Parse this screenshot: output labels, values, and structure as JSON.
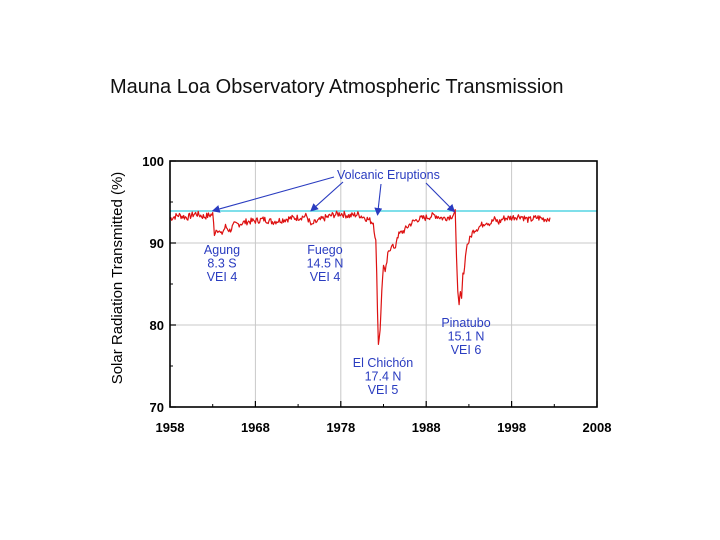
{
  "chart_data": {
    "type": "line",
    "title": "Mauna Loa Observatory Atmospheric Transmission",
    "xlabel": "",
    "ylabel": "Solar Radiation Transmitted (%)",
    "xlim": [
      1958,
      2008
    ],
    "ylim": [
      70,
      100
    ],
    "xticks": [
      1958,
      1968,
      1978,
      1988,
      1998,
      2008
    ],
    "yticks": [
      70,
      80,
      90,
      100
    ],
    "grid": true,
    "reference_line": {
      "y": 93.9,
      "color": "#33ccdd"
    },
    "series": [
      {
        "name": "Atmospheric transmission",
        "color": "#dd1111",
        "x": [
          1958.0,
          1959.0,
          1960.0,
          1961.0,
          1962.0,
          1963.0,
          1963.2,
          1963.5,
          1964.0,
          1964.5,
          1965.0,
          1965.5,
          1966.0,
          1967.0,
          1968.0,
          1969.0,
          1970.0,
          1971.0,
          1972.0,
          1973.0,
          1974.0,
          1974.6,
          1974.8,
          1975.2,
          1976.0,
          1977.0,
          1978.0,
          1979.0,
          1980.0,
          1981.0,
          1981.8,
          1982.1,
          1982.3,
          1982.4,
          1982.6,
          1982.8,
          1983.0,
          1983.2,
          1983.5,
          1983.8,
          1984.0,
          1984.3,
          1984.6,
          1985.0,
          1985.5,
          1986.0,
          1986.5,
          1987.0,
          1988.0,
          1989.0,
          1990.0,
          1991.0,
          1991.4,
          1991.55,
          1991.7,
          1991.85,
          1992.0,
          1992.15,
          1992.3,
          1992.5,
          1992.7,
          1993.0,
          1993.3,
          1993.6,
          1994.0,
          1994.5,
          1995.0,
          1995.5,
          1996.0,
          1996.5,
          1997.0,
          1998.0,
          1999.0,
          2000.0,
          2001.0,
          2002.0,
          2002.5
        ],
        "y": [
          93.0,
          93.4,
          93.1,
          93.6,
          93.2,
          93.5,
          91.2,
          91.8,
          91.0,
          92.0,
          91.5,
          92.2,
          92.3,
          92.6,
          92.7,
          92.9,
          92.6,
          92.8,
          93.0,
          93.1,
          93.3,
          92.0,
          92.4,
          92.6,
          93.0,
          93.4,
          93.6,
          93.3,
          93.5,
          93.0,
          92.5,
          90.2,
          82.0,
          77.6,
          79.5,
          84.0,
          87.5,
          86.2,
          88.5,
          89.4,
          90.0,
          89.0,
          90.8,
          91.2,
          91.6,
          92.2,
          92.6,
          92.9,
          93.1,
          93.4,
          93.0,
          93.3,
          93.7,
          88.0,
          84.5,
          82.2,
          83.8,
          83.2,
          86.0,
          87.2,
          89.5,
          90.2,
          91.0,
          91.6,
          91.8,
          92.2,
          92.6,
          92.4,
          92.9,
          92.5,
          93.0,
          93.1,
          93.3,
          92.8,
          93.1,
          92.9,
          93.1
        ]
      }
    ],
    "annotations": {
      "volcanic_label": "Volcanic Eruptions",
      "eruptions": [
        {
          "name": "Agung",
          "lat": "8.3 S",
          "vei": "VEI  4",
          "year": 1963.0,
          "arrow_y": 93.8
        },
        {
          "name": "Fuego",
          "lat": "14.5 N",
          "vei": "VEI  4",
          "year": 1974.5,
          "arrow_y": 93.8
        },
        {
          "name": "El Chichón",
          "lat": "17.4 N",
          "vei": "VEI  5",
          "year": 1982.3,
          "arrow_y": 93.3
        },
        {
          "name": "Pinatubo",
          "lat": "15.1 N",
          "vei": "VEI  6",
          "year": 1991.3,
          "arrow_y": 93.7
        }
      ]
    }
  }
}
